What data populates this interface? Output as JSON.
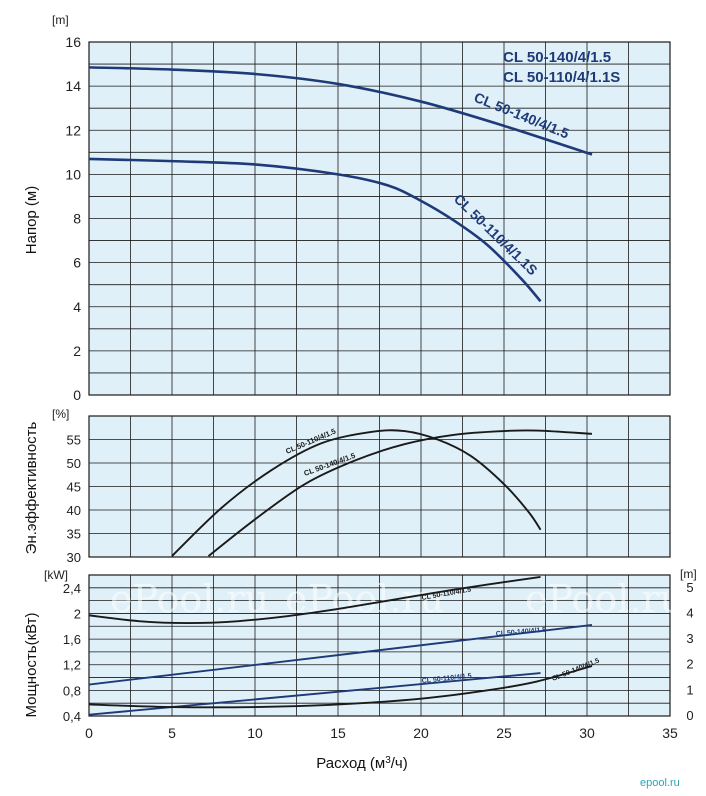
{
  "colors": {
    "plot_bg": "#dff0f8",
    "grid": "#1a1a1a",
    "curve_main": "#1f3a78",
    "curve_dark": "#1a1a1a",
    "model_text": "#1f3a78",
    "brand": "#2aa3b8"
  },
  "models": [
    "CL 50-140/4/1.5",
    "CL 50-110/4/1.1S"
  ],
  "watermark": "ePool.ru",
  "brand_logo": "epool.ru",
  "chart_data": [
    {
      "id": "head",
      "type": "line",
      "ylabel": "Напор (м)",
      "yunit": "[m]",
      "xlim": [
        0,
        35
      ],
      "ylim": [
        0,
        16
      ],
      "yticks": [
        "0",
        "2",
        "4",
        "6",
        "8",
        "10",
        "12",
        "14",
        "16"
      ],
      "series": [
        {
          "name": "CL 50-140/4/1.5",
          "x": [
            0,
            5,
            10,
            15,
            20,
            25,
            30.3
          ],
          "y": [
            14.85,
            14.75,
            14.55,
            14.1,
            13.3,
            12.2,
            10.9
          ]
        },
        {
          "name": "CL 50-110/4/1.1S",
          "x": [
            0,
            5,
            10,
            15,
            18,
            20,
            22,
            24,
            26,
            27.2
          ],
          "y": [
            10.7,
            10.6,
            10.45,
            10.0,
            9.5,
            8.8,
            7.9,
            6.8,
            5.3,
            4.25
          ]
        }
      ]
    },
    {
      "id": "efficiency",
      "type": "line",
      "ylabel": "Эн.эффективность",
      "yunit": "[%]",
      "xlim": [
        0,
        35
      ],
      "ylim": [
        30,
        60
      ],
      "yticks": [
        "30",
        "35",
        "40",
        "45",
        "50",
        "55"
      ],
      "series": [
        {
          "name": "CL 50-110/4/1.5",
          "x": [
            5,
            8,
            11,
            14,
            17,
            19,
            21,
            23,
            25,
            26.5,
            27.2
          ],
          "y": [
            30.2,
            40.5,
            48.5,
            54.2,
            56.6,
            56.8,
            55.0,
            51.5,
            45.5,
            39.5,
            35.8
          ]
        },
        {
          "name": "CL 50-140/4/1.5",
          "x": [
            7.2,
            10,
            13,
            16,
            19,
            22,
            25,
            27,
            30.3
          ],
          "y": [
            30.2,
            38.0,
            45.5,
            50.5,
            54.0,
            56.0,
            56.8,
            56.9,
            56.2
          ]
        }
      ]
    },
    {
      "id": "power",
      "type": "line",
      "ylabel": "Мощность(кВт)",
      "yunit": "[kW]",
      "yunit_right": "[m]",
      "xlabel": "Расход (м3/ч)",
      "xlabel_main": "Расход (м",
      "xlabel_sup": "3",
      "xlabel_tail": "/ч)",
      "xlim": [
        0,
        35
      ],
      "ylim": [
        0.4,
        2.6
      ],
      "xticks": [
        "0",
        "5",
        "10",
        "15",
        "20",
        "25",
        "30",
        "35"
      ],
      "yticks": [
        "0,4",
        "0,8",
        "1,2",
        "1,6",
        "2",
        "2,4"
      ],
      "yticks_right": [
        "0",
        "1",
        "2",
        "3",
        "4",
        "5"
      ],
      "series": [
        {
          "name": "CL 50-110/4/1.5",
          "x": [
            0,
            3,
            6,
            9,
            12,
            15,
            18,
            21,
            24,
            27.2
          ],
          "y": [
            1.97,
            1.88,
            1.85,
            1.88,
            1.96,
            2.07,
            2.2,
            2.33,
            2.45,
            2.57
          ]
        },
        {
          "name": "CL 50-140/4/1.5",
          "x": [
            0,
            30.3
          ],
          "y": [
            0.89,
            1.82
          ]
        },
        {
          "name": "CL 50-110/4/1.5",
          "x": [
            0,
            27.2
          ],
          "y": [
            0.42,
            1.07
          ]
        },
        {
          "name": "CL 50-140/4/1.5",
          "x": [
            0,
            5,
            10,
            15,
            20,
            24,
            27,
            30.3
          ],
          "y": [
            0.58,
            0.54,
            0.54,
            0.58,
            0.67,
            0.8,
            0.94,
            1.18
          ]
        }
      ]
    }
  ]
}
